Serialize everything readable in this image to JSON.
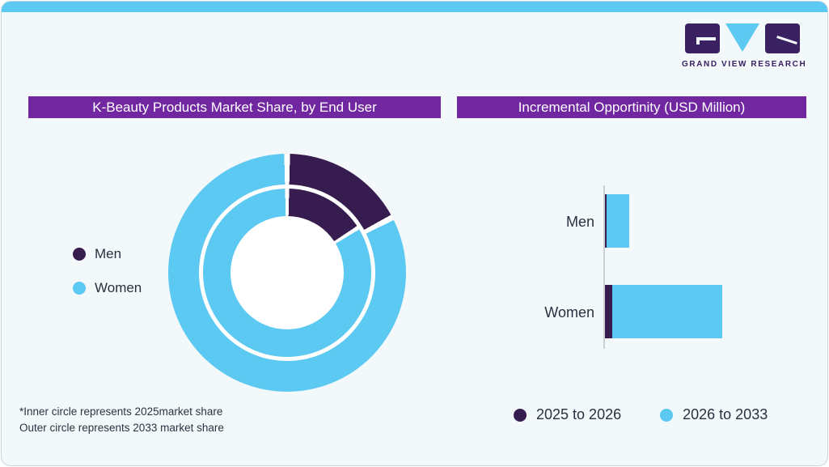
{
  "page": {
    "background": "#F3F8FB",
    "accent_blue": "#5CC9F2",
    "accent_dark_purple": "#371C4F",
    "title_bar_purple": "#7127A0",
    "text_color": "#2B3040"
  },
  "logo": {
    "brand": "GRAND VIEW RESEARCH",
    "mark_color": "#3A2162",
    "triangle_color": "#5CC9F2"
  },
  "left_panel": {
    "title": "K-Beauty Products Market Share, by End User",
    "legend": [
      {
        "label": "Men",
        "color": "#371C4F"
      },
      {
        "label": "Women",
        "color": "#5CC9F2"
      }
    ],
    "footnote_line1": "*Inner circle represents 2025market share",
    "footnote_line2": "Outer circle represents 2033 market share"
  },
  "right_panel": {
    "title": "Incremental Opportinity (USD Million)",
    "legend": [
      {
        "label": "2025 to 2026",
        "color": "#371C4F"
      },
      {
        "label": "2026 to 2033",
        "color": "#5CC9F2"
      }
    ]
  },
  "chart_data": [
    {
      "type": "pie",
      "variant": "double-ring-donut",
      "title": "K-Beauty Products Market Share, by End User",
      "categories": [
        "Men",
        "Women"
      ],
      "series": [
        {
          "name": "2025 market share (inner circle)",
          "values": [
            16.0,
            84.0
          ]
        },
        {
          "name": "2033 market share (outer circle)",
          "values": [
            17.3,
            82.7
          ]
        }
      ],
      "unit": "percent (estimated from arc angles; no data labels shown)",
      "colors": [
        "#371C4F",
        "#5CC9F2"
      ],
      "legend_position": "left",
      "separator_color": "#ffffff"
    },
    {
      "type": "bar",
      "orientation": "horizontal",
      "stacked": true,
      "title": "Incremental Opportinity (USD Million)",
      "categories": [
        "Men",
        "Women"
      ],
      "series": [
        {
          "name": "2025 to 2026",
          "values": [
            2,
            9
          ],
          "color": "#371C4F"
        },
        {
          "name": "2026 to 2033",
          "values": [
            28,
            136
          ],
          "color": "#5CC9F2"
        }
      ],
      "unit": "relative bar length in px (no numeric axis labels shown)",
      "axis": "baseline only, no ticks",
      "legend_position": "bottom",
      "bar_rows": [
        {
          "label": "Men",
          "top": 238
        },
        {
          "label": "Women",
          "top": 350
        }
      ]
    }
  ]
}
